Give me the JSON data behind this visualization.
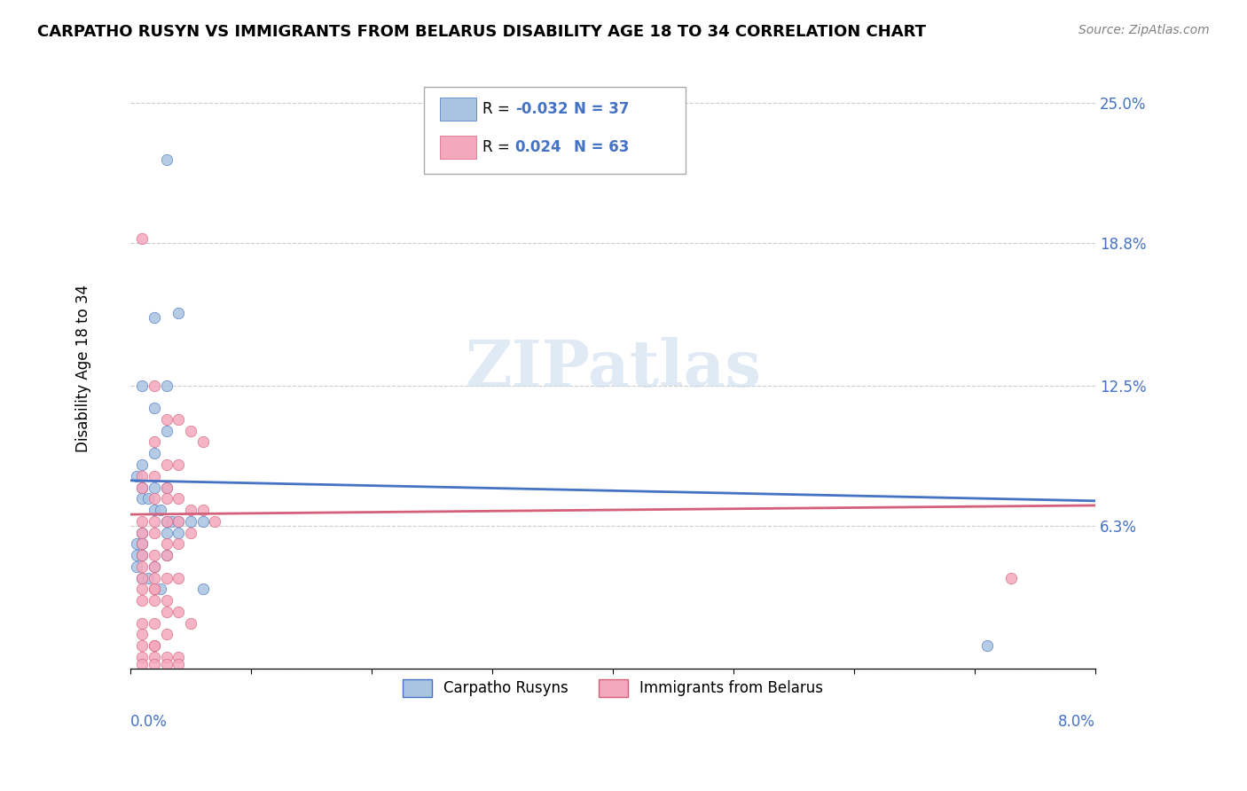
{
  "title": "CARPATHO RUSYN VS IMMIGRANTS FROM BELARUS DISABILITY AGE 18 TO 34 CORRELATION CHART",
  "source": "Source: ZipAtlas.com",
  "ylabel": "Disability Age 18 to 34",
  "yticks": [
    0.0,
    0.063,
    0.125,
    0.188,
    0.25
  ],
  "ytick_labels": [
    "",
    "6.3%",
    "12.5%",
    "18.8%",
    "25.0%"
  ],
  "xlim": [
    0.0,
    0.08
  ],
  "ylim": [
    0.0,
    0.265
  ],
  "series1_name": "Carpatho Rusyns",
  "series1_R": "-0.032",
  "series1_N": "37",
  "series1_color": "#a8c4e0",
  "series1_line_color": "#4472c4",
  "series2_name": "Immigrants from Belarus",
  "series2_R": "0.024",
  "series2_N": "63",
  "series2_color": "#f4a8be",
  "series2_line_color": "#d4607a",
  "watermark_text": "ZIPatlas",
  "blue_line_y0": 0.083,
  "blue_line_y1": 0.074,
  "pink_line_y0": 0.068,
  "pink_line_y1": 0.072,
  "blue_x": [
    0.001,
    0.004,
    0.002,
    0.003,
    0.002,
    0.003,
    0.002,
    0.001,
    0.0005,
    0.001,
    0.002,
    0.003,
    0.001,
    0.0015,
    0.002,
    0.0025,
    0.003,
    0.0035,
    0.004,
    0.005,
    0.006,
    0.003,
    0.004,
    0.001,
    0.0005,
    0.001,
    0.0005,
    0.001,
    0.0005,
    0.002,
    0.001,
    0.0015,
    0.003,
    0.0025,
    0.006,
    0.071,
    0.003
  ],
  "blue_y": [
    0.125,
    0.157,
    0.155,
    0.125,
    0.115,
    0.105,
    0.095,
    0.09,
    0.085,
    0.08,
    0.08,
    0.08,
    0.075,
    0.075,
    0.07,
    0.07,
    0.065,
    0.065,
    0.065,
    0.065,
    0.065,
    0.06,
    0.06,
    0.06,
    0.055,
    0.055,
    0.05,
    0.05,
    0.045,
    0.045,
    0.04,
    0.04,
    0.05,
    0.035,
    0.035,
    0.01,
    0.225
  ],
  "pink_x": [
    0.001,
    0.002,
    0.003,
    0.004,
    0.005,
    0.006,
    0.002,
    0.003,
    0.004,
    0.001,
    0.002,
    0.003,
    0.001,
    0.002,
    0.003,
    0.004,
    0.005,
    0.006,
    0.007,
    0.001,
    0.002,
    0.003,
    0.004,
    0.005,
    0.001,
    0.002,
    0.003,
    0.004,
    0.001,
    0.002,
    0.003,
    0.001,
    0.002,
    0.001,
    0.002,
    0.003,
    0.004,
    0.001,
    0.002,
    0.001,
    0.002,
    0.003,
    0.001,
    0.002,
    0.003,
    0.004,
    0.005,
    0.001,
    0.002,
    0.003,
    0.001,
    0.002,
    0.001,
    0.002,
    0.003,
    0.004,
    0.001,
    0.002,
    0.001,
    0.002,
    0.003,
    0.004,
    0.073
  ],
  "pink_y": [
    0.19,
    0.125,
    0.11,
    0.11,
    0.105,
    0.1,
    0.1,
    0.09,
    0.09,
    0.085,
    0.085,
    0.08,
    0.08,
    0.075,
    0.075,
    0.075,
    0.07,
    0.07,
    0.065,
    0.065,
    0.065,
    0.065,
    0.065,
    0.06,
    0.06,
    0.06,
    0.055,
    0.055,
    0.055,
    0.05,
    0.05,
    0.05,
    0.045,
    0.045,
    0.04,
    0.04,
    0.04,
    0.04,
    0.035,
    0.035,
    0.035,
    0.03,
    0.03,
    0.03,
    0.025,
    0.025,
    0.02,
    0.02,
    0.02,
    0.015,
    0.015,
    0.01,
    0.01,
    0.01,
    0.005,
    0.005,
    0.005,
    0.005,
    0.002,
    0.002,
    0.002,
    0.002,
    0.04
  ]
}
